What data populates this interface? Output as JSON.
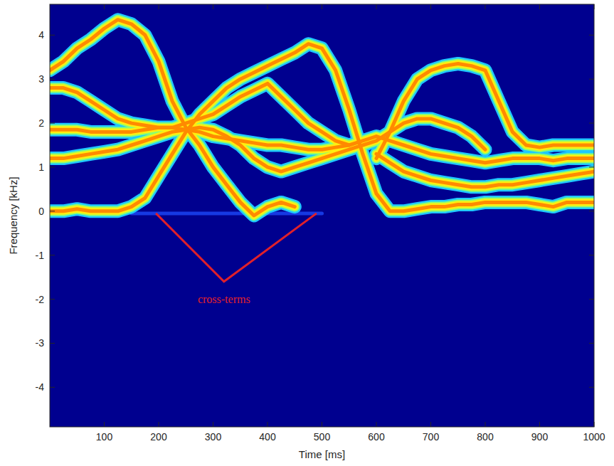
{
  "chart_data": {
    "type": "spectrogram",
    "x_label": "Time [ms]",
    "y_label": "Frequency [kHz]",
    "xlim": [
      0,
      1000
    ],
    "ylim": [
      -4.9,
      4.7
    ],
    "xticks": [
      100,
      200,
      300,
      400,
      500,
      600,
      700,
      800,
      900,
      1000
    ],
    "yticks": [
      -4,
      -3,
      -2,
      -1,
      0,
      1,
      2,
      3,
      4
    ],
    "x": [
      0,
      25,
      50,
      75,
      100,
      125,
      150,
      175,
      200,
      225,
      250,
      275,
      300,
      325,
      350,
      375,
      400,
      425,
      450,
      475,
      500,
      525,
      550,
      575,
      600,
      625,
      650,
      675,
      700,
      725,
      750,
      775,
      800,
      825,
      850,
      875,
      900,
      925,
      950,
      975,
      1000
    ],
    "series": [
      {
        "values": [
          3.2,
          3.4,
          3.7,
          3.9,
          4.15,
          4.35,
          4.25,
          4.0,
          3.4,
          2.5,
          1.9,
          1.5,
          1.0,
          0.6,
          0.2,
          -0.1,
          0.1,
          0.2,
          0.1,
          null,
          null,
          null,
          null,
          null,
          null,
          null,
          null,
          null,
          null,
          null,
          null,
          null,
          null,
          null,
          null,
          null,
          null,
          null,
          null,
          null,
          null
        ]
      },
      {
        "values": [
          0,
          0,
          0.05,
          0,
          0,
          0,
          0.1,
          0.3,
          0.8,
          1.3,
          1.8,
          2.2,
          2.5,
          2.8,
          3.0,
          3.15,
          3.3,
          3.45,
          3.6,
          3.8,
          3.7,
          3.2,
          2.3,
          1.3,
          0.4,
          0,
          0,
          0.05,
          0.1,
          0.1,
          0.15,
          0.15,
          0.2,
          0.2,
          0.2,
          0.2,
          0.15,
          0.1,
          0.2,
          0.2,
          0.2
        ]
      },
      {
        "values": [
          null,
          null,
          null,
          null,
          null,
          null,
          null,
          null,
          null,
          null,
          null,
          null,
          null,
          null,
          null,
          null,
          null,
          null,
          null,
          null,
          null,
          null,
          null,
          null,
          1.2,
          1.8,
          2.5,
          3.0,
          3.2,
          3.3,
          3.35,
          3.3,
          3.2,
          2.5,
          1.8,
          1.5,
          1.45,
          1.5,
          1.5,
          1.5,
          1.5
        ]
      },
      {
        "values": [
          1.85,
          1.85,
          1.85,
          1.8,
          1.8,
          1.8,
          1.8,
          1.85,
          1.9,
          1.9,
          1.85,
          1.8,
          1.7,
          1.65,
          1.6,
          1.55,
          1.5,
          1.5,
          1.45,
          1.4,
          1.4,
          1.45,
          1.5,
          1.6,
          1.7,
          1.6,
          1.5,
          1.4,
          1.3,
          1.25,
          1.2,
          1.15,
          1.1,
          1.15,
          1.2,
          1.2,
          1.2,
          1.15,
          1.2,
          1.2,
          1.2
        ]
      },
      {
        "values": [
          2.8,
          2.8,
          2.7,
          2.5,
          2.3,
          2.1,
          2.0,
          1.95,
          1.9,
          1.9,
          2.0,
          2.1,
          2.2,
          2.4,
          2.6,
          2.75,
          2.9,
          2.6,
          2.3,
          2.0,
          1.8,
          1.6,
          1.5,
          null,
          null,
          null,
          null,
          null,
          null,
          null,
          null,
          null,
          null,
          null,
          null,
          null,
          null,
          null,
          null,
          null,
          null
        ]
      },
      {
        "values": [
          1.2,
          1.2,
          1.25,
          1.3,
          1.35,
          1.4,
          1.5,
          1.6,
          1.7,
          1.8,
          1.85,
          1.9,
          1.85,
          1.7,
          1.5,
          1.2,
          1.0,
          0.9,
          1.0,
          1.1,
          1.2,
          1.3,
          1.4,
          1.5,
          1.6,
          1.8,
          2.0,
          2.1,
          2.1,
          2.0,
          1.9,
          1.7,
          1.4,
          null,
          null,
          null,
          null,
          null,
          null,
          null,
          null
        ]
      },
      {
        "values": [
          null,
          null,
          null,
          null,
          null,
          null,
          null,
          null,
          null,
          null,
          null,
          null,
          null,
          null,
          null,
          null,
          null,
          null,
          null,
          null,
          null,
          null,
          null,
          null,
          1.3,
          1.1,
          0.9,
          0.8,
          0.7,
          0.65,
          0.6,
          0.55,
          0.55,
          0.6,
          0.6,
          0.65,
          0.7,
          0.75,
          0.8,
          0.85,
          0.9
        ]
      },
      {
        "line_style": "faint",
        "values": [
          null,
          null,
          null,
          null,
          null,
          null,
          -0.05,
          -0.05,
          -0.05,
          -0.05,
          -0.05,
          -0.05,
          -0.05,
          -0.05,
          -0.05,
          -0.05,
          -0.05,
          -0.05,
          -0.05,
          -0.05,
          -0.05,
          null,
          null,
          null,
          null,
          null,
          null,
          null,
          null,
          null,
          null,
          null,
          null,
          null,
          null,
          null,
          null,
          null,
          null,
          null,
          null
        ]
      }
    ],
    "annotations": [
      {
        "text": "cross-terms",
        "color": "#e0202a"
      }
    ]
  }
}
